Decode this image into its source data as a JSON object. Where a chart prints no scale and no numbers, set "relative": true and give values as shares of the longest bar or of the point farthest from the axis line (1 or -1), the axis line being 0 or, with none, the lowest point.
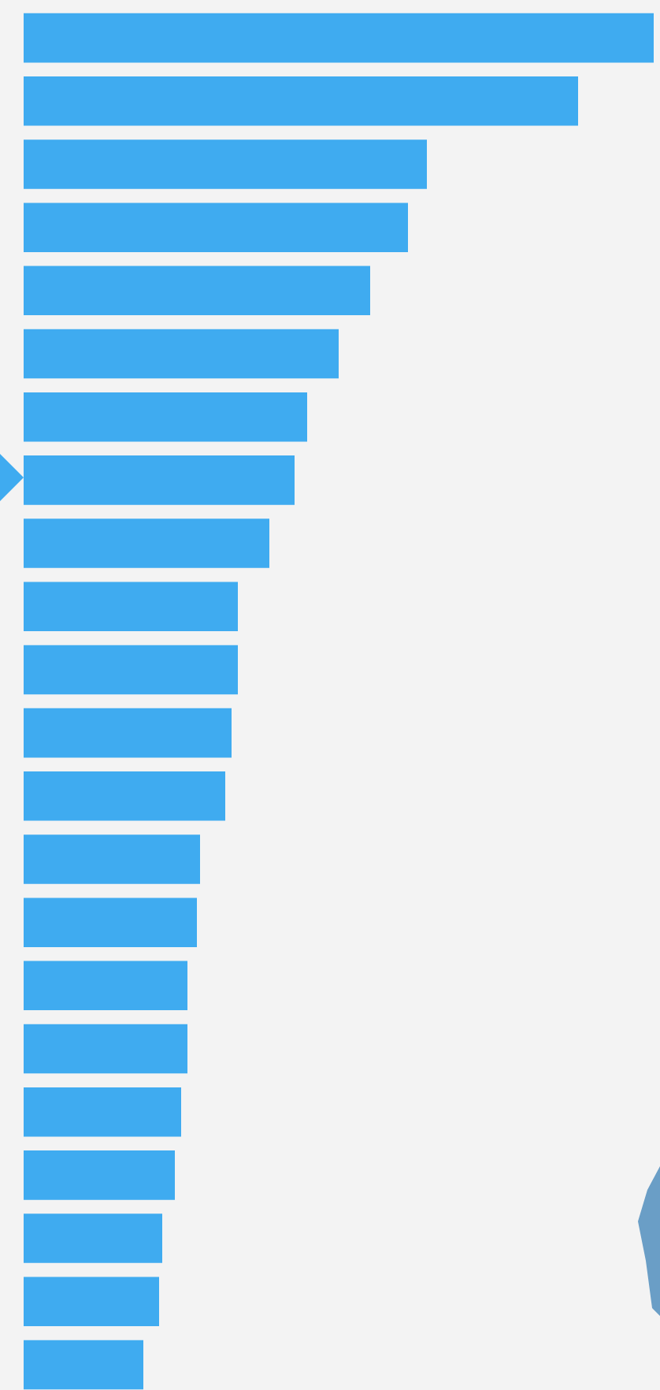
{
  "chart_data": {
    "type": "bar",
    "orientation": "horizontal",
    "relative": true,
    "color": "#3fabf0",
    "categories": [
      null,
      null,
      null,
      null,
      null,
      null,
      null,
      null,
      null,
      null,
      null,
      null,
      null,
      null,
      null,
      null,
      null,
      null,
      null,
      null,
      null,
      null
    ],
    "values": [
      1,
      0.88,
      0.64,
      0.61,
      0.55,
      0.5,
      0.45,
      0.43,
      0.39,
      0.34,
      0.34,
      0.33,
      0.32,
      0.28,
      0.275,
      0.26,
      0.26,
      0.25,
      0.24,
      0.22,
      0.215,
      0.19
    ],
    "grid": false,
    "legend": false
  }
}
